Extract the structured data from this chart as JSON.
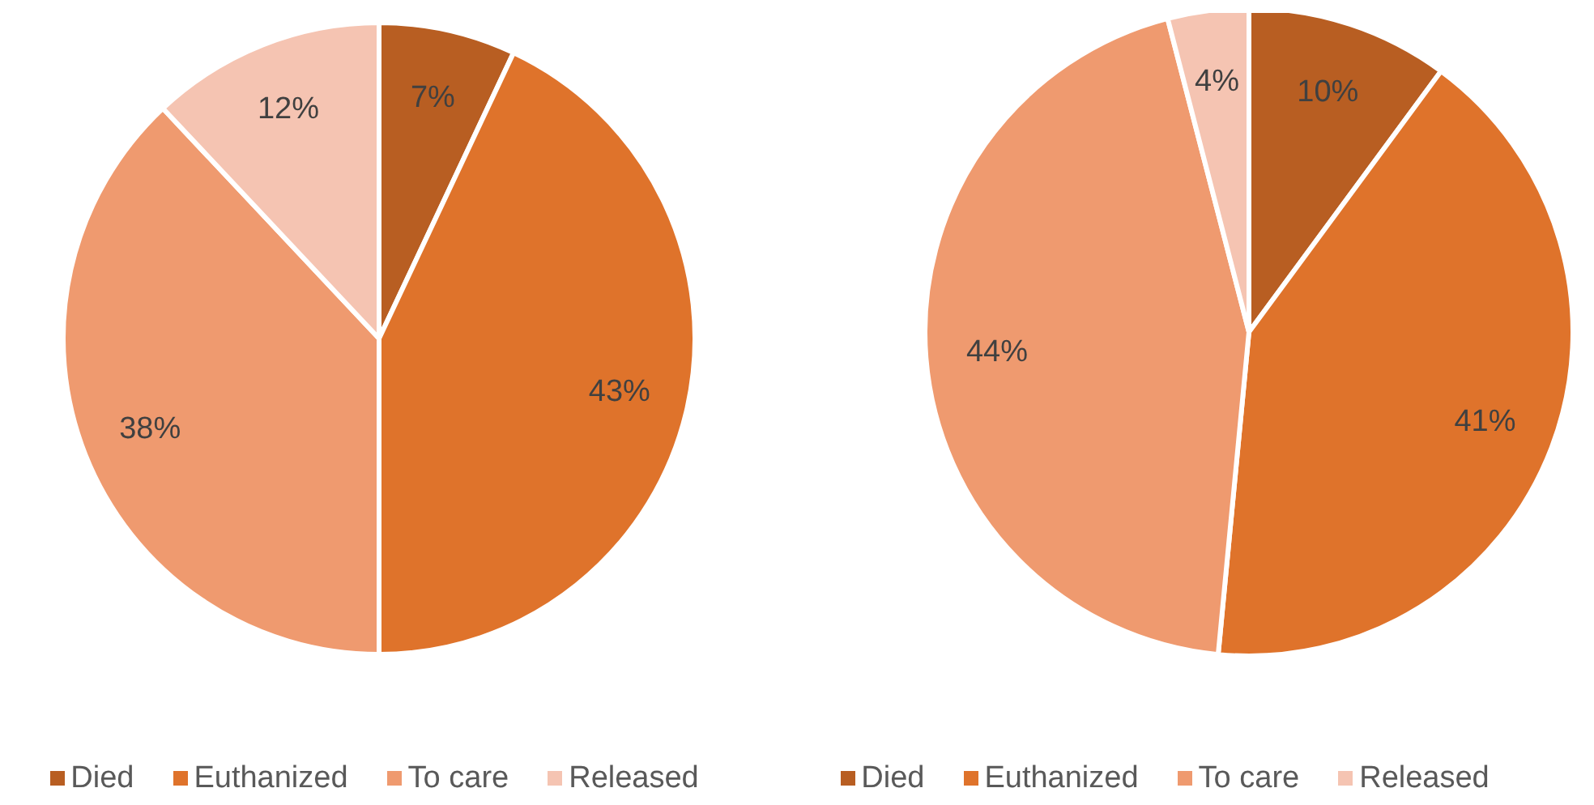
{
  "chart_data": [
    {
      "type": "pie",
      "categories": [
        "Died",
        "Euthanized",
        "To care",
        "Released"
      ],
      "values": [
        7,
        43,
        38,
        12
      ],
      "value_labels": [
        "7%",
        "43%",
        "38%",
        "12%"
      ],
      "colors": [
        "#b85e22",
        "#df732b",
        "#ef9a6f",
        "#f5c4b2"
      ],
      "legend": "bottom"
    },
    {
      "type": "pie",
      "categories": [
        "Died",
        "Euthanized",
        "To care",
        "Released"
      ],
      "values": [
        10,
        41,
        44,
        4
      ],
      "value_labels": [
        "10%",
        "41%",
        "44%",
        "4%"
      ],
      "colors": [
        "#b85e22",
        "#df732b",
        "#ef9a6f",
        "#f5c4b2"
      ],
      "legend": "bottom"
    }
  ]
}
